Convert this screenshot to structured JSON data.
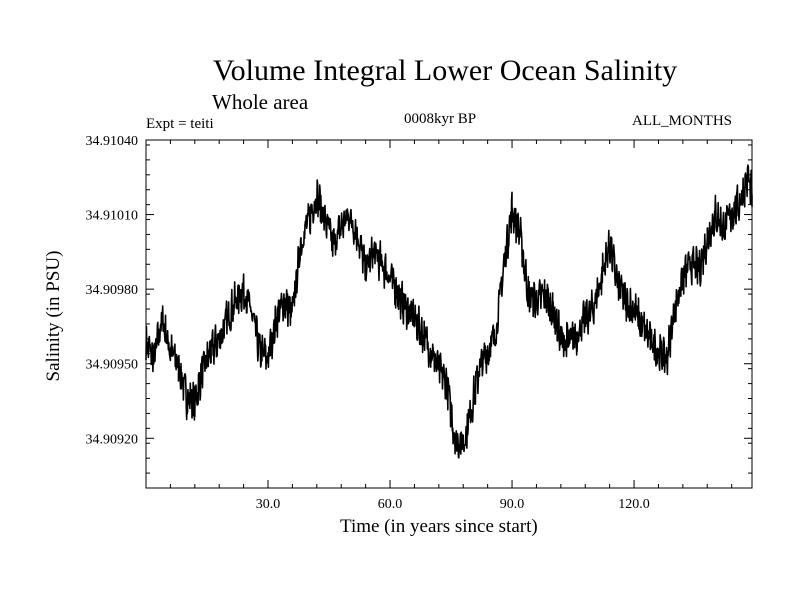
{
  "chart_data": {
    "type": "line",
    "title": "Volume Integral Lower Ocean Salinity",
    "subtitle": "Whole area",
    "annotations": {
      "experiment": "Expt = teiti",
      "period": "0008kyr BP",
      "months": "ALL_MONTHS"
    },
    "xlabel": "Time (in years since start)",
    "ylabel": "Salinity (in PSU)",
    "xlim": [
      0,
      149
    ],
    "ylim": [
      34.909,
      34.9104
    ],
    "xticks": [
      30,
      60,
      90,
      120
    ],
    "xtick_labels": [
      "30.0",
      "60.0",
      "90.0",
      "120.0"
    ],
    "yticks": [
      34.9092,
      34.9095,
      34.9098,
      34.9101,
      34.9104
    ],
    "ytick_labels": [
      "34.90920",
      "34.90950",
      "34.90980",
      "34.91010",
      "34.91040"
    ],
    "grid": false,
    "legend": "none",
    "series": [
      {
        "name": "Salinity",
        "x": [
          0,
          2,
          4,
          6,
          8,
          10,
          12,
          14,
          16,
          18,
          20,
          22,
          24,
          26,
          28,
          30,
          32,
          34,
          36,
          38,
          40,
          42,
          44,
          46,
          48,
          50,
          52,
          54,
          56,
          58,
          60,
          62,
          64,
          66,
          68,
          70,
          72,
          74,
          76,
          78,
          80,
          82,
          84,
          86,
          88,
          90,
          92,
          94,
          96,
          98,
          100,
          102,
          104,
          106,
          108,
          110,
          112,
          114,
          116,
          118,
          120,
          122,
          124,
          126,
          128,
          130,
          132,
          134,
          136,
          138,
          140,
          142,
          144,
          146,
          148,
          149
        ],
        "values": [
          34.90958,
          34.90952,
          34.90968,
          34.90955,
          34.9095,
          34.90936,
          34.90935,
          34.90948,
          34.90955,
          34.9096,
          34.90968,
          34.90975,
          34.9098,
          34.9097,
          34.90955,
          34.90952,
          34.90968,
          34.90975,
          34.9097,
          34.90998,
          34.91008,
          34.91018,
          34.91008,
          34.90998,
          34.91005,
          34.9101,
          34.91002,
          34.90988,
          34.90995,
          34.9099,
          34.90985,
          34.90978,
          34.90972,
          34.90968,
          34.90962,
          34.90955,
          34.90948,
          34.90942,
          34.9092,
          34.90918,
          34.90932,
          34.90948,
          34.90955,
          34.90962,
          34.9099,
          34.91012,
          34.91002,
          34.90978,
          34.90975,
          34.90978,
          34.90972,
          34.9096,
          34.90958,
          34.90962,
          34.90968,
          34.90972,
          34.90985,
          34.90998,
          34.90982,
          34.90975,
          34.90972,
          34.90965,
          34.9096,
          34.90955,
          34.90952,
          34.90972,
          34.90985,
          34.9099,
          34.90988,
          34.91,
          34.9101,
          34.91005,
          34.9101,
          34.91015,
          34.91025,
          34.91018
        ]
      }
    ]
  }
}
